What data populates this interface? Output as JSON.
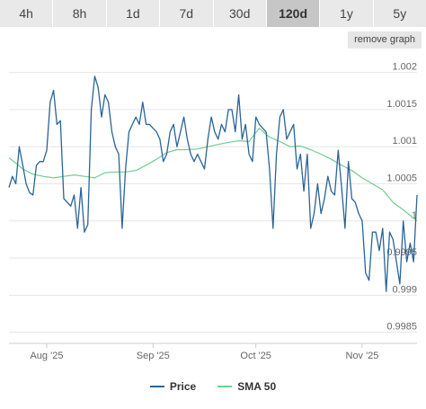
{
  "tabs": [
    {
      "label": "4h",
      "active": false
    },
    {
      "label": "8h",
      "active": false
    },
    {
      "label": "1d",
      "active": false
    },
    {
      "label": "7d",
      "active": false
    },
    {
      "label": "30d",
      "active": false
    },
    {
      "label": "120d",
      "active": true
    },
    {
      "label": "1y",
      "active": false
    },
    {
      "label": "5y",
      "active": false
    }
  ],
  "remove_graph_label": "remove graph",
  "colors": {
    "price": "#2a6496",
    "sma": "#6ecf8e",
    "grid": "#e6e6e6",
    "active_tab": "#c6c6c6"
  },
  "legend": [
    {
      "label": "Price",
      "color": "#2a6496"
    },
    {
      "label": "SMA 50",
      "color": "#6ecf8e"
    }
  ],
  "chart_data": {
    "type": "line",
    "x_unit": "day",
    "x_range": [
      "2025-07-21",
      "2025-11-17"
    ],
    "xticks": [
      {
        "label": "Aug '25",
        "x": "2025-08-01"
      },
      {
        "label": "Sep '25",
        "x": "2025-09-01"
      },
      {
        "label": "Oct '25",
        "x": "2025-10-01"
      },
      {
        "label": "Nov '25",
        "x": "2025-11-01"
      }
    ],
    "yticks": [
      0.9985,
      0.999,
      0.9995,
      1,
      1.0005,
      1.001,
      1.0015,
      1.002
    ],
    "ytick_labels": [
      "0.9985",
      "0.999",
      "0.9995",
      "1",
      "1.0005",
      "1.001",
      "1.0015",
      "1.002"
    ],
    "ylim": [
      0.99835,
      1.00225
    ],
    "grid": true,
    "y_axis_side": "right",
    "legend_position": "bottom",
    "series": [
      {
        "name": "Price",
        "points": [
          [
            "2025-07-21",
            1.00045
          ],
          [
            "2025-07-22",
            1.0006
          ],
          [
            "2025-07-23",
            1.0005
          ],
          [
            "2025-07-24",
            1.001
          ],
          [
            "2025-07-25",
            1.00075
          ],
          [
            "2025-07-26",
            1.0005
          ],
          [
            "2025-07-27",
            1.00038
          ],
          [
            "2025-07-28",
            1.00035
          ],
          [
            "2025-07-29",
            1.00075
          ],
          [
            "2025-07-30",
            1.0008
          ],
          [
            "2025-07-31",
            1.0008
          ],
          [
            "2025-08-01",
            1.00095
          ],
          [
            "2025-08-02",
            1.0016
          ],
          [
            "2025-08-03",
            1.00176
          ],
          [
            "2025-08-04",
            1.0013
          ],
          [
            "2025-08-05",
            1.00135
          ],
          [
            "2025-08-06",
            1.0003
          ],
          [
            "2025-08-07",
            1.00025
          ],
          [
            "2025-08-08",
            1.0002
          ],
          [
            "2025-08-09",
            1.00035
          ],
          [
            "2025-08-10",
            0.9999
          ],
          [
            "2025-08-11",
            1.00045
          ],
          [
            "2025-08-12",
            0.99985
          ],
          [
            "2025-08-13",
            0.99995
          ],
          [
            "2025-08-14",
            1.0015
          ],
          [
            "2025-08-15",
            1.00195
          ],
          [
            "2025-08-16",
            1.0018
          ],
          [
            "2025-08-17",
            1.0014
          ],
          [
            "2025-08-18",
            1.0017
          ],
          [
            "2025-08-19",
            1.0016
          ],
          [
            "2025-08-20",
            1.0012
          ],
          [
            "2025-08-21",
            1.001
          ],
          [
            "2025-08-22",
            1.0009
          ],
          [
            "2025-08-23",
            0.9999
          ],
          [
            "2025-08-24",
            1.0007
          ],
          [
            "2025-08-25",
            1.0012
          ],
          [
            "2025-08-26",
            1.0013
          ],
          [
            "2025-08-27",
            1.0014
          ],
          [
            "2025-08-28",
            1.0013
          ],
          [
            "2025-08-29",
            1.0016
          ],
          [
            "2025-08-30",
            1.0013
          ],
          [
            "2025-08-31",
            1.0013
          ],
          [
            "2025-09-01",
            1.00125
          ],
          [
            "2025-09-02",
            1.0012
          ],
          [
            "2025-09-03",
            1.0011
          ],
          [
            "2025-09-04",
            1.0008
          ],
          [
            "2025-09-05",
            1.0009
          ],
          [
            "2025-09-06",
            1.0012
          ],
          [
            "2025-09-07",
            1.0013
          ],
          [
            "2025-09-08",
            1.001
          ],
          [
            "2025-09-09",
            1.0012
          ],
          [
            "2025-09-10",
            1.0014
          ],
          [
            "2025-09-11",
            1.0011
          ],
          [
            "2025-09-12",
            1.0009
          ],
          [
            "2025-09-13",
            1.0008
          ],
          [
            "2025-09-14",
            1.0009
          ],
          [
            "2025-09-15",
            1.0008
          ],
          [
            "2025-09-16",
            1.0007
          ],
          [
            "2025-09-17",
            1.0011
          ],
          [
            "2025-09-18",
            1.0014
          ],
          [
            "2025-09-19",
            1.0012
          ],
          [
            "2025-09-20",
            1.0011
          ],
          [
            "2025-09-21",
            1.0013
          ],
          [
            "2025-09-22",
            1.0012
          ],
          [
            "2025-09-23",
            1.0015
          ],
          [
            "2025-09-24",
            1.0015
          ],
          [
            "2025-09-25",
            1.0012
          ],
          [
            "2025-09-26",
            1.0017
          ],
          [
            "2025-09-27",
            1.0011
          ],
          [
            "2025-09-28",
            1.0013
          ],
          [
            "2025-09-29",
            1.0009
          ],
          [
            "2025-09-30",
            1.0008
          ],
          [
            "2025-10-01",
            1.0014
          ],
          [
            "2025-10-02",
            1.0013
          ],
          [
            "2025-10-03",
            1.00125
          ],
          [
            "2025-10-04",
            1.0012
          ],
          [
            "2025-10-05",
            1.0007
          ],
          [
            "2025-10-06",
            0.9999
          ],
          [
            "2025-10-07",
            1.0009
          ],
          [
            "2025-10-08",
            1.0014
          ],
          [
            "2025-10-09",
            1.0015
          ],
          [
            "2025-10-10",
            1.0011
          ],
          [
            "2025-10-11",
            1.0012
          ],
          [
            "2025-10-12",
            1.0013
          ],
          [
            "2025-10-13",
            1.0007
          ],
          [
            "2025-10-14",
            1.0009
          ],
          [
            "2025-10-15",
            1.0004
          ],
          [
            "2025-10-16",
            1.0009
          ],
          [
            "2025-10-17",
            0.9999
          ],
          [
            "2025-10-18",
            1.0001
          ],
          [
            "2025-10-19",
            1.0005
          ],
          [
            "2025-10-20",
            1.0001
          ],
          [
            "2025-10-21",
            1.0003
          ],
          [
            "2025-10-22",
            1.0006
          ],
          [
            "2025-10-23",
            1.0004
          ],
          [
            "2025-10-24",
            1.00035
          ],
          [
            "2025-10-25",
            1.00095
          ],
          [
            "2025-10-26",
            1.00045
          ],
          [
            "2025-10-27",
            0.9999
          ],
          [
            "2025-10-28",
            1.0008
          ],
          [
            "2025-10-29",
            1.0003
          ],
          [
            "2025-10-30",
            1.00025
          ],
          [
            "2025-10-31",
            1.0001
          ],
          [
            "2025-11-01",
            1.0
          ],
          [
            "2025-11-02",
            0.9993
          ],
          [
            "2025-11-03",
            0.9992
          ],
          [
            "2025-11-04",
            0.99985
          ],
          [
            "2025-11-05",
            0.99985
          ],
          [
            "2025-11-06",
            0.9996
          ],
          [
            "2025-11-07",
            0.9999
          ],
          [
            "2025-11-08",
            0.99905
          ],
          [
            "2025-11-09",
            0.99985
          ],
          [
            "2025-11-10",
            0.99975
          ],
          [
            "2025-11-11",
            0.99945
          ],
          [
            "2025-11-12",
            0.99915
          ],
          [
            "2025-11-13",
            1.0
          ],
          [
            "2025-11-14",
            0.99945
          ],
          [
            "2025-11-15",
            0.9997
          ],
          [
            "2025-11-16",
            0.99945
          ],
          [
            "2025-11-17",
            1.00035
          ]
        ]
      },
      {
        "name": "SMA 50",
        "points": [
          [
            "2025-07-21",
            1.00085
          ],
          [
            "2025-07-23",
            1.00078
          ],
          [
            "2025-07-25",
            1.0007
          ],
          [
            "2025-07-28",
            1.00063
          ],
          [
            "2025-07-31",
            1.0006
          ],
          [
            "2025-08-03",
            1.00058
          ],
          [
            "2025-08-06",
            1.0006
          ],
          [
            "2025-08-09",
            1.00062
          ],
          [
            "2025-08-12",
            1.0006
          ],
          [
            "2025-08-15",
            1.00058
          ],
          [
            "2025-08-18",
            1.00065
          ],
          [
            "2025-08-21",
            1.00066
          ],
          [
            "2025-08-24",
            1.00066
          ],
          [
            "2025-08-27",
            1.00068
          ],
          [
            "2025-08-30",
            1.00075
          ],
          [
            "2025-09-02",
            1.00083
          ],
          [
            "2025-09-05",
            1.00092
          ],
          [
            "2025-09-08",
            1.00096
          ],
          [
            "2025-09-11",
            1.00096
          ],
          [
            "2025-09-14",
            1.00097
          ],
          [
            "2025-09-17",
            1.001
          ],
          [
            "2025-09-20",
            1.00103
          ],
          [
            "2025-09-23",
            1.00106
          ],
          [
            "2025-09-26",
            1.00108
          ],
          [
            "2025-09-29",
            1.00107
          ],
          [
            "2025-10-02",
            1.00125
          ],
          [
            "2025-10-05",
            1.00113
          ],
          [
            "2025-10-08",
            1.00107
          ],
          [
            "2025-10-11",
            1.001
          ],
          [
            "2025-10-14",
            1.00101
          ],
          [
            "2025-10-17",
            1.00096
          ],
          [
            "2025-10-20",
            1.0009
          ],
          [
            "2025-10-23",
            1.00083
          ],
          [
            "2025-10-26",
            1.00075
          ],
          [
            "2025-10-29",
            1.00068
          ],
          [
            "2025-11-01",
            1.00058
          ],
          [
            "2025-11-04",
            1.0005
          ],
          [
            "2025-11-07",
            1.00042
          ],
          [
            "2025-11-10",
            1.00025
          ],
          [
            "2025-11-13",
            1.00015
          ],
          [
            "2025-11-17",
            1.0
          ]
        ]
      }
    ]
  }
}
